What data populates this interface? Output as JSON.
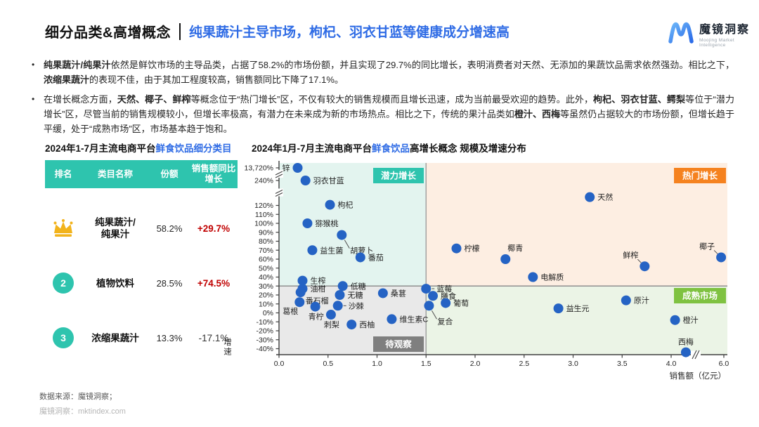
{
  "header": {
    "title_black": "细分品类&高增概念",
    "title_blue": "纯果蔬汁主导市场，枸杞、羽衣甘蓝等健康成分增速高",
    "logo_cn": "魔镜洞察",
    "logo_en": "Moojing Market Intelligence"
  },
  "bullets": [
    {
      "segments": [
        {
          "t": "纯果蔬汁/纯果汁",
          "b": true
        },
        {
          "t": "依然是鲜饮市场的主导品类，占据了58.2%的市场份额，并且实现了29.7%的同比增长，表明消费者对天然、无添加的果蔬饮品需求依然强劲。相比之下，",
          "b": false
        },
        {
          "t": "浓缩果蔬汁",
          "b": true
        },
        {
          "t": "的表现不佳，由于其加工程度较高，销售额同比下降了17.1%。",
          "b": false
        }
      ]
    },
    {
      "segments": [
        {
          "t": "在增长概念方面，",
          "b": false
        },
        {
          "t": "天然、椰子、鲜榨",
          "b": true
        },
        {
          "t": "等概念位于“热门增长”区，不仅有较大的销售规模而且增长迅速，成为当前最受欢迎的趋势。此外，",
          "b": false
        },
        {
          "t": "枸杞、羽衣甘蓝、鳄梨",
          "b": true
        },
        {
          "t": "等位于“潜力增长”区，尽管当前的销售规模较小，但增长率极高，有潜力在未来成为新的市场热点。相比之下，传统的果汁品类如",
          "b": false
        },
        {
          "t": "橙汁、西梅",
          "b": true
        },
        {
          "t": "等虽然仍占据较大的市场份额，但增长趋于平缓，处于“成熟市场”区，市场基本趋于饱和。",
          "b": false
        }
      ]
    }
  ],
  "table": {
    "title_black": "2024年1-7月主流电商平台",
    "title_blue": "鲜食饮品细分类目",
    "headers": [
      "排名",
      "类目名称",
      "份额",
      "销售额同比增长"
    ],
    "header_bg": "#2ec4ae",
    "rows": [
      {
        "rank": "crown",
        "name_lines": [
          "纯果蔬汁/",
          "纯果汁"
        ],
        "share": "58.2%",
        "growth": "+29.7%",
        "growth_color": "#c00000",
        "growth_bold": true
      },
      {
        "rank": "2",
        "name_lines": [
          "植物饮料"
        ],
        "share": "28.5%",
        "growth": "+74.5%",
        "growth_color": "#c00000",
        "growth_bold": true
      },
      {
        "rank": "3",
        "name_lines": [
          "浓缩果蔬汁"
        ],
        "share": "13.3%",
        "growth": "-17.1%",
        "growth_color": "#333333",
        "growth_bold": false
      }
    ]
  },
  "chart_data": {
    "type": "scatter",
    "title_black1": "2024年1月-7月主流电商平台",
    "title_blue": "鲜食饮品",
    "title_black2": "高增长概念 规模及增速分布",
    "xlabel": "销售额（亿元）",
    "ylabel": "增速",
    "dot_color": "#2563c4",
    "axis_breaks": {
      "y": true,
      "x": true
    },
    "dividers": {
      "x_value": 1.5,
      "y_value_pct": 30
    },
    "x_ticks": [
      {
        "v": 0.0,
        "label": "0.0"
      },
      {
        "v": 0.5,
        "label": "0.5"
      },
      {
        "v": 1.0,
        "label": "1.0"
      },
      {
        "v": 1.5,
        "label": "1.5"
      },
      {
        "v": 2.0,
        "label": "2.0"
      },
      {
        "v": 2.5,
        "label": "2.5"
      },
      {
        "v": 3.0,
        "label": "3.0"
      },
      {
        "v": 3.5,
        "label": "3.5"
      },
      {
        "v": 4.0,
        "label": "4.0"
      },
      {
        "v": 6.0,
        "label": "6.0"
      }
    ],
    "y_ticks": [
      {
        "v": 13720,
        "label": "13,720%"
      },
      {
        "v": 240,
        "label": "240%"
      },
      {
        "v": 120,
        "label": "120%"
      },
      {
        "v": 110,
        "label": "110%"
      },
      {
        "v": 100,
        "label": "100%"
      },
      {
        "v": 90,
        "label": "90%"
      },
      {
        "v": 80,
        "label": "80%"
      },
      {
        "v": 70,
        "label": "70%"
      },
      {
        "v": 60,
        "label": "60%"
      },
      {
        "v": 50,
        "label": "50%"
      },
      {
        "v": 40,
        "label": "40%"
      },
      {
        "v": 30,
        "label": "30%"
      },
      {
        "v": 20,
        "label": "20%"
      },
      {
        "v": 10,
        "label": "10%"
      },
      {
        "v": 0,
        "label": "0%"
      },
      {
        "v": -10,
        "label": "-10%"
      },
      {
        "v": -20,
        "label": "-20%"
      },
      {
        "v": -30,
        "label": "-30%"
      },
      {
        "v": -40,
        "label": "-40%"
      }
    ],
    "quadrants": [
      {
        "label": "潜力增长",
        "pos": "top-left",
        "badge_color": "#2ec4ae",
        "bg": "#e3f4ef"
      },
      {
        "label": "热门增长",
        "pos": "top-right",
        "badge_color": "#f5821f",
        "bg": "#fdeee2"
      },
      {
        "label": "待观察",
        "pos": "bottom-left",
        "badge_color": "#7f7f7f",
        "bg": "#e9e9e9"
      },
      {
        "label": "成熟市场",
        "pos": "bottom-right",
        "badge_color": "#7fc241",
        "bg": "#ebf4e6"
      }
    ],
    "points": [
      {
        "name": "锌",
        "x": 0.19,
        "y": 13720,
        "label": "left"
      },
      {
        "name": "羽衣甘蓝",
        "x": 0.27,
        "y": 240,
        "label": "right"
      },
      {
        "name": "枸杞",
        "x": 0.52,
        "y": 123,
        "label": "right"
      },
      {
        "name": "猕猴桃",
        "x": 0.29,
        "y": 100,
        "label": "right"
      },
      {
        "name": "胡萝卜",
        "x": 0.64,
        "y": 87,
        "label": "below-far",
        "connector": true
      },
      {
        "name": "益生菌",
        "x": 0.34,
        "y": 70,
        "label": "right"
      },
      {
        "name": "番茄",
        "x": 0.83,
        "y": 62,
        "label": "right"
      },
      {
        "name": "天然",
        "x": 3.17,
        "y": 160,
        "label": "right"
      },
      {
        "name": "柠檬",
        "x": 1.81,
        "y": 72,
        "label": "right"
      },
      {
        "name": "椰青",
        "x": 2.31,
        "y": 60,
        "label": "above-right"
      },
      {
        "name": "电解质",
        "x": 2.59,
        "y": 40,
        "label": "right"
      },
      {
        "name": "鲜榨",
        "x": 3.73,
        "y": 52,
        "label": "above-left",
        "connector": true
      },
      {
        "name": "椰子",
        "x": 5.8,
        "y": 62,
        "label": "above-left",
        "connector": true
      },
      {
        "name": "生榨",
        "x": 0.24,
        "y": 36,
        "label": "right"
      },
      {
        "name": "油柑",
        "x": 0.24,
        "y": 27,
        "label": "right"
      },
      {
        "name": "番石榴",
        "x": 0.22,
        "y": 23,
        "label": "below-right"
      },
      {
        "name": "葛根",
        "x": 0.21,
        "y": 12,
        "label": "below-left"
      },
      {
        "name": "青柠",
        "x": 0.37,
        "y": 7,
        "label": "below"
      },
      {
        "name": "低糖",
        "x": 0.65,
        "y": 30,
        "label": "right"
      },
      {
        "name": "无糖",
        "x": 0.62,
        "y": 20,
        "label": "right"
      },
      {
        "name": "沙棘",
        "x": 0.6,
        "y": 8,
        "label": "right",
        "connector": true
      },
      {
        "name": "刺梨",
        "x": 0.53,
        "y": -2,
        "label": "below"
      },
      {
        "name": "西柚",
        "x": 0.74,
        "y": -13,
        "label": "right"
      },
      {
        "name": "桑葚",
        "x": 1.06,
        "y": 22,
        "label": "right"
      },
      {
        "name": "维生素C",
        "x": 1.15,
        "y": -7,
        "label": "right"
      },
      {
        "name": "蓝莓",
        "x": 1.5,
        "y": 27,
        "label": "right",
        "connector": true
      },
      {
        "name": "膳食",
        "x": 1.57,
        "y": 19,
        "label": "right"
      },
      {
        "name": "葡萄",
        "x": 1.7,
        "y": 11,
        "label": "right"
      },
      {
        "name": "复合",
        "x": 1.53,
        "y": 8,
        "label": "below-far",
        "connector": true
      },
      {
        "name": "益生元",
        "x": 2.85,
        "y": 5,
        "label": "right"
      },
      {
        "name": "原汁",
        "x": 3.54,
        "y": 14,
        "label": "right"
      },
      {
        "name": "橙汁",
        "x": 4.04,
        "y": -8,
        "label": "right"
      },
      {
        "name": "西梅",
        "x": 4.15,
        "y": -44,
        "label": "above"
      }
    ]
  },
  "footer": {
    "source": "数据来源：魔镜洞察；",
    "site": "魔镜洞察：mktindex.com"
  }
}
